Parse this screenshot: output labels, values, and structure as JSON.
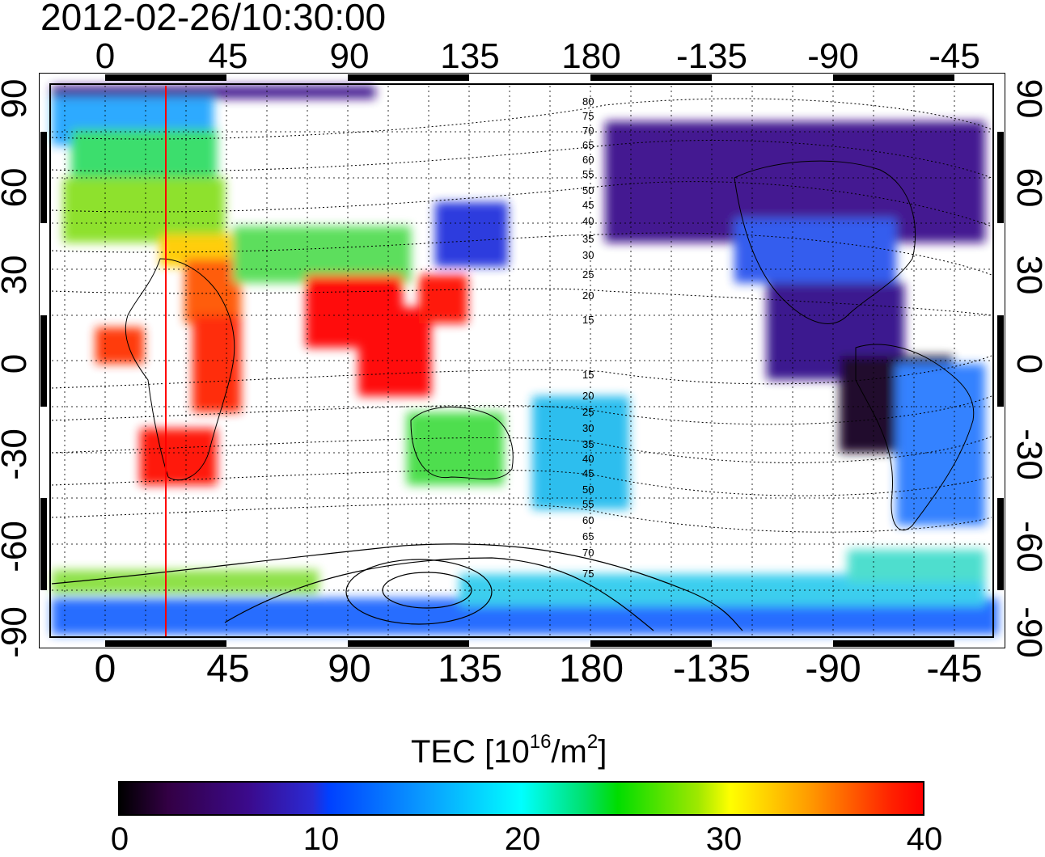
{
  "title": "2012-02-26/10:30:00",
  "longitude_ticks_top": [
    "0",
    "45",
    "90",
    "135",
    "180",
    "-135",
    "-90",
    "-45"
  ],
  "longitude_ticks_bottom": [
    "0",
    "45",
    "90",
    "135",
    "180",
    "-135",
    "-90",
    "-45"
  ],
  "latitude_ticks_left": [
    "90",
    "60",
    "30",
    "0",
    "-30",
    "-60",
    "-90"
  ],
  "latitude_ticks_right": [
    "90",
    "60",
    "30",
    "0",
    "-30",
    "-60",
    "-90"
  ],
  "map": {
    "projection": "equirectangular",
    "lon_range": [
      -20,
      340
    ],
    "lat_range": [
      -90,
      90
    ],
    "grid": "dotted 15°",
    "marker_meridian_lon": 22,
    "marker_color": "#ff0000",
    "contour_labels_upper": [
      "80",
      "75",
      "70",
      "65",
      "60",
      "55",
      "50",
      "45",
      "40",
      "35",
      "30",
      "25",
      "20",
      "15"
    ],
    "contour_labels_lower": [
      "15",
      "20",
      "25",
      "30",
      "35",
      "40",
      "45",
      "50",
      "55",
      "60",
      "65",
      "70",
      "75"
    ]
  },
  "colorbar": {
    "title_main": "TEC  [10",
    "title_sup1": "16",
    "title_mid": "/m",
    "title_sup2": "2",
    "title_end": "]",
    "min": 0,
    "max": 40,
    "tick_labels": [
      "0",
      "10",
      "20",
      "30",
      "40"
    ]
  }
}
